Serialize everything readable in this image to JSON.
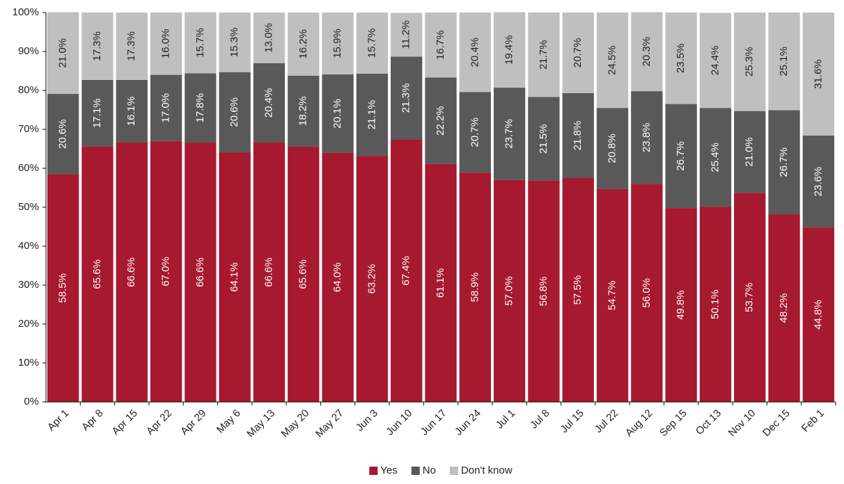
{
  "chart_data": {
    "type": "stacked_bar",
    "categories": [
      "Apr 1",
      "Apr 8",
      "Apr 15",
      "Apr 22",
      "Apr 29",
      "May 6",
      "May 13",
      "May 20",
      "May 27",
      "Jun 3",
      "Jun 10",
      "Jun 17",
      "Jun 24",
      "Jul 1",
      "Jul 8",
      "Jul 15",
      "Jul 22",
      "Aug 12",
      "Sep 15",
      "Oct 13",
      "Nov 10",
      "Dec 15",
      "Feb 1"
    ],
    "series": [
      {
        "name": "Yes",
        "color": "#a6192e",
        "values": [
          58.5,
          65.6,
          66.6,
          67.0,
          66.6,
          64.1,
          66.6,
          65.6,
          64.0,
          63.2,
          67.4,
          61.1,
          58.9,
          57.0,
          56.8,
          57.5,
          54.7,
          56.0,
          49.8,
          50.1,
          53.7,
          48.2,
          44.8
        ],
        "value_labels": [
          "58.5%",
          "65.6%",
          "66.6%",
          "67.0%",
          "66.6%",
          "64.1%",
          "66.6%",
          "65.6%",
          "64.0%",
          "63.2%",
          "67.4%",
          "61.1%",
          "58.9%",
          "57.0%",
          "56.8%",
          "57.5%",
          "54.7%",
          "56.0%",
          "49.8%",
          "50.1%",
          "53.7%",
          "48.2%",
          "44.8%"
        ]
      },
      {
        "name": "No",
        "color": "#595959",
        "values": [
          20.6,
          17.1,
          16.1,
          17.0,
          17.8,
          20.6,
          20.4,
          18.2,
          20.1,
          21.1,
          21.3,
          22.2,
          20.7,
          23.7,
          21.5,
          21.8,
          20.8,
          23.8,
          26.7,
          25.4,
          21.0,
          26.7,
          23.6
        ],
        "value_labels": [
          "20.6%",
          "17.1%",
          "16.1%",
          "17.0%",
          "17.8%",
          "20.6%",
          "20.4%",
          "18.2%",
          "20.1%",
          "21.1%",
          "21.3%",
          "22.2%",
          "20.7%",
          "23.7%",
          "21.5%",
          "21.8%",
          "20.8%",
          "23.8%",
          "26.7%",
          "25.4%",
          "21.0%",
          "26.7%",
          "23.6%"
        ]
      },
      {
        "name": "Don't know",
        "color": "#bfbfbf",
        "values": [
          21.0,
          17.3,
          17.3,
          16.0,
          15.7,
          15.3,
          13.0,
          16.2,
          15.9,
          15.7,
          11.2,
          16.7,
          20.4,
          19.4,
          21.7,
          20.7,
          24.5,
          20.3,
          23.5,
          24.4,
          25.3,
          25.1,
          31.6
        ],
        "value_labels": [
          "21.0%",
          "17.3%",
          "17.3%",
          "16.0%",
          "15.7%",
          "15.3%",
          "13.0%",
          "16.2%",
          "15.9%",
          "15.7%",
          "11.2%",
          "16.7%",
          "20.4%",
          "19.4%",
          "21.7%",
          "20.7%",
          "24.5%",
          "20.3%",
          "23.5%",
          "24.4%",
          "25.3%",
          "25.1%",
          "31.6%"
        ]
      }
    ],
    "ylim": [
      0,
      100
    ],
    "yticks": [
      {
        "value": 0,
        "label": "0%"
      },
      {
        "value": 10,
        "label": "10%"
      },
      {
        "value": 20,
        "label": "20%"
      },
      {
        "value": 30,
        "label": "30%"
      },
      {
        "value": 40,
        "label": "40%"
      },
      {
        "value": 50,
        "label": "50%"
      },
      {
        "value": 60,
        "label": "60%"
      },
      {
        "value": 70,
        "label": "70%"
      },
      {
        "value": 80,
        "label": "80%"
      },
      {
        "value": 90,
        "label": "90%"
      },
      {
        "value": 100,
        "label": "100%"
      }
    ],
    "grid": false,
    "legend": "bottom"
  }
}
